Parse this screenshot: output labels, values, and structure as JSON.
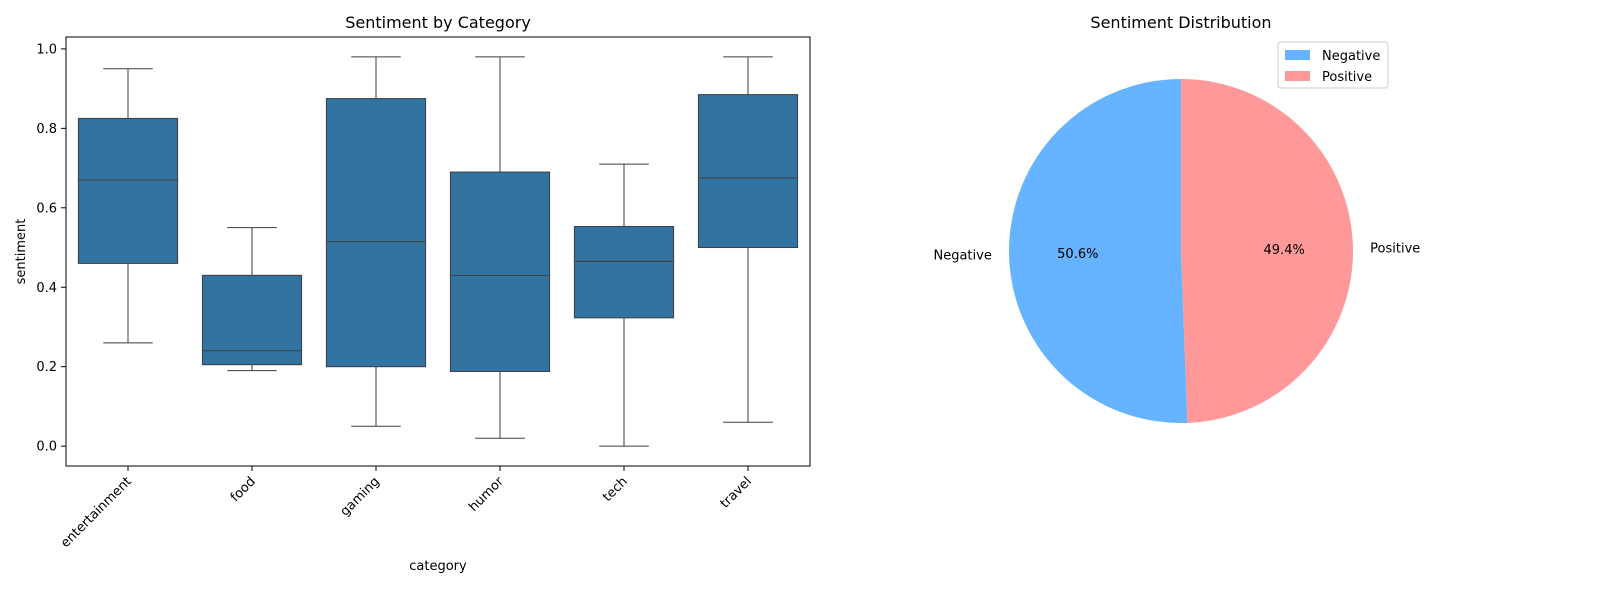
{
  "chart_data": [
    {
      "type": "box",
      "title": "Sentiment by Category",
      "xlabel": "category",
      "ylabel": "sentiment",
      "ylim": [
        -0.05,
        1.03
      ],
      "yticks": [
        "0.0",
        "0.2",
        "0.4",
        "0.6",
        "0.8",
        "1.0"
      ],
      "ytick_values": [
        0.0,
        0.2,
        0.4,
        0.6,
        0.8,
        1.0
      ],
      "categories": [
        "entertainment",
        "food",
        "gaming",
        "humor",
        "tech",
        "travel"
      ],
      "boxes": [
        {
          "category": "entertainment",
          "min": 0.26,
          "q1": 0.46,
          "median": 0.67,
          "q3": 0.825,
          "max": 0.95
        },
        {
          "category": "food",
          "min": 0.19,
          "q1": 0.205,
          "median": 0.24,
          "q3": 0.43,
          "max": 0.55
        },
        {
          "category": "gaming",
          "min": 0.05,
          "q1": 0.2,
          "median": 0.515,
          "q3": 0.875,
          "max": 0.98
        },
        {
          "category": "humor",
          "min": 0.02,
          "q1": 0.188,
          "median": 0.43,
          "q3": 0.69,
          "max": 0.98
        },
        {
          "category": "tech",
          "min": 0.0,
          "q1": 0.323,
          "median": 0.465,
          "q3": 0.553,
          "max": 0.71
        },
        {
          "category": "travel",
          "min": 0.06,
          "q1": 0.5,
          "median": 0.675,
          "q3": 0.885,
          "max": 0.98
        }
      ],
      "color": "#3274a1",
      "grid": false
    },
    {
      "type": "pie",
      "title": "Sentiment Distribution",
      "slices": [
        {
          "label": "Negative",
          "value": 50.6,
          "pct_label": "50.6%",
          "color": "#66b3ff"
        },
        {
          "label": "Positive",
          "value": 49.4,
          "pct_label": "49.4%",
          "color": "#ff9999"
        }
      ],
      "start_angle": 90,
      "legend": [
        "Negative",
        "Positive"
      ],
      "legend_position": "top-right"
    }
  ]
}
